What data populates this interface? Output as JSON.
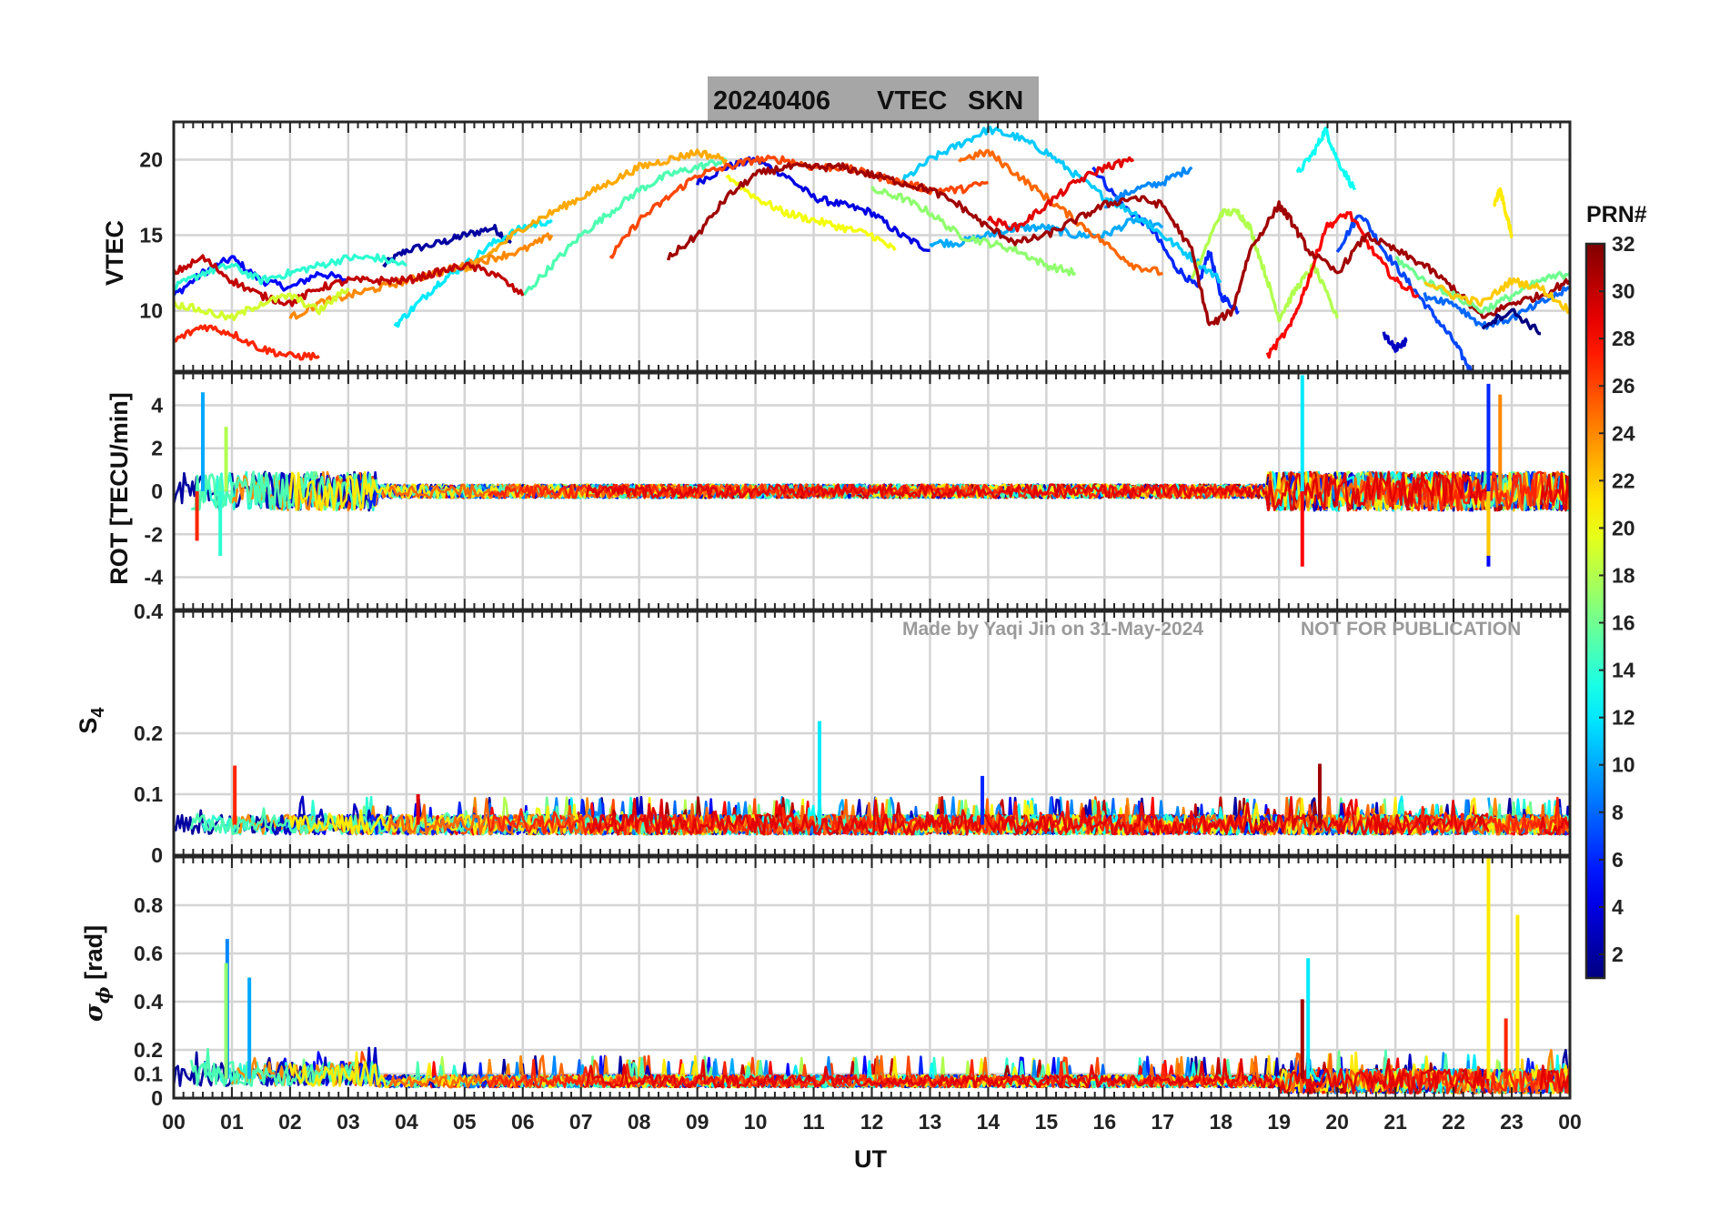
{
  "title": {
    "date": "20240406",
    "quantity": "VTEC",
    "station": "SKN"
  },
  "watermark": {
    "author": "Made by Yaqi Jin on 31-May-2024",
    "notice": "NOT FOR PUBLICATION"
  },
  "colorbar": {
    "label": "PRN#",
    "ticks": [
      "2",
      "4",
      "6",
      "8",
      "10",
      "12",
      "14",
      "16",
      "18",
      "20",
      "22",
      "24",
      "26",
      "28",
      "30",
      "32"
    ],
    "range": [
      1,
      32
    ],
    "colormap": "jet",
    "colors": [
      "#000080",
      "#0000ff",
      "#0080ff",
      "#00ffff",
      "#80ff80",
      "#ffff00",
      "#ff8000",
      "#ff0000",
      "#800000"
    ]
  },
  "chart_data": [
    {
      "type": "line",
      "panel": "vtec",
      "ylabel": "VTEC",
      "ylim": [
        6,
        22.5
      ],
      "yticks": [
        "10",
        "15",
        "20"
      ],
      "grid": true,
      "series_note": "",
      "series": [
        {
          "prn": 2,
          "x": [
            3.6,
            4.0,
            4.6,
            5.0,
            5.5,
            5.8
          ],
          "y": [
            13.0,
            14.0,
            14.5,
            15.0,
            15.5,
            14.5
          ]
        },
        {
          "prn": 5,
          "x": [
            0.0,
            0.5,
            1.0,
            1.5,
            2.0,
            2.5,
            3.0
          ],
          "y": [
            11.0,
            12.5,
            13.5,
            12.0,
            11.5,
            12.5,
            12.0
          ]
        },
        {
          "prn": 4,
          "x": [
            9.0,
            9.5,
            10.0,
            10.5,
            11.0,
            11.5,
            12.0,
            12.5,
            13.0
          ],
          "y": [
            18.5,
            19.5,
            20.0,
            19.0,
            17.5,
            17.0,
            16.5,
            15.0,
            14.0
          ]
        },
        {
          "prn": 6,
          "x": [
            15.8,
            16.3,
            16.8,
            17.2,
            17.6,
            17.8,
            18.0,
            18.3
          ],
          "y": [
            19.5,
            17.0,
            15.5,
            13.0,
            11.5,
            14.0,
            11.0,
            10.0
          ]
        },
        {
          "prn": 7,
          "x": [
            20.0,
            20.4,
            20.8,
            21.2,
            21.6,
            22.0,
            22.3
          ],
          "y": [
            14.0,
            16.5,
            14.0,
            12.0,
            10.0,
            8.0,
            6.0
          ]
        },
        {
          "prn": 9,
          "x": [
            16.0,
            16.5,
            17.0,
            17.5
          ],
          "y": [
            17.0,
            18.0,
            18.5,
            19.5
          ]
        },
        {
          "prn": 10,
          "x": [
            13.0,
            13.5,
            14.0,
            14.5,
            15.0,
            15.5,
            16.0,
            16.5,
            17.0
          ],
          "y": [
            14.5,
            14.5,
            15.0,
            15.5,
            15.5,
            15.0,
            15.0,
            16.0,
            15.5
          ]
        },
        {
          "prn": 11,
          "x": [
            12.5,
            13.0,
            13.5,
            14.0,
            14.5,
            15.0,
            15.5,
            16.0,
            16.5,
            17.0,
            17.5,
            18.0
          ],
          "y": [
            18.5,
            20.0,
            21.0,
            22.0,
            21.5,
            20.5,
            19.0,
            17.5,
            16.5,
            15.0,
            13.5,
            12.0
          ]
        },
        {
          "prn": 12,
          "x": [
            3.8,
            4.2,
            4.6,
            5.0,
            5.5,
            6.0,
            6.5
          ],
          "y": [
            9.0,
            10.5,
            12.0,
            13.0,
            14.5,
            15.5,
            16.0
          ]
        },
        {
          "prn": 13,
          "x": [
            19.3,
            19.6,
            19.8,
            20.0,
            20.3
          ],
          "y": [
            19.0,
            20.5,
            22.0,
            20.0,
            18.0
          ]
        },
        {
          "prn": 14,
          "x": [
            0.0,
            0.5,
            1.0,
            1.5,
            2.0,
            2.5,
            3.0,
            3.5,
            4.0
          ],
          "y": [
            11.5,
            12.5,
            13.0,
            12.0,
            12.5,
            13.0,
            13.5,
            13.5,
            13.0
          ]
        },
        {
          "prn": 15,
          "x": [
            6.0,
            6.5,
            7.0,
            7.5,
            8.0,
            8.5,
            9.0,
            9.5
          ],
          "y": [
            11.0,
            13.0,
            15.0,
            16.5,
            18.0,
            19.0,
            19.5,
            20.0
          ]
        },
        {
          "prn": 17,
          "x": [
            12.0,
            12.5,
            13.0,
            13.5,
            14.0,
            14.5,
            15.0,
            15.5
          ],
          "y": [
            18.0,
            17.5,
            16.5,
            15.0,
            14.5,
            14.0,
            13.0,
            12.5
          ]
        },
        {
          "prn": 18,
          "x": [
            17.5,
            18.0,
            18.3,
            18.5,
            18.8,
            19.0,
            19.3,
            19.6,
            20.0
          ],
          "y": [
            12.0,
            16.5,
            16.5,
            15.5,
            12.0,
            9.5,
            11.5,
            13.0,
            9.5
          ]
        },
        {
          "prn": 20,
          "x": [
            9.5,
            10.0,
            10.5,
            11.0,
            11.5,
            12.0,
            12.4
          ],
          "y": [
            19.0,
            17.5,
            16.5,
            16.0,
            15.5,
            15.0,
            14.0
          ]
        },
        {
          "prn": 21,
          "x": [
            22.7,
            22.8,
            22.9,
            23.0
          ],
          "y": [
            17.0,
            18.0,
            16.5,
            15.0
          ]
        },
        {
          "prn": 23,
          "x": [
            5.0,
            5.5,
            6.0,
            6.5,
            7.0,
            7.5,
            8.0,
            8.5,
            9.0,
            9.5
          ],
          "y": [
            12.5,
            14.0,
            15.5,
            16.5,
            17.5,
            18.5,
            19.5,
            20.0,
            20.5,
            20.0
          ]
        },
        {
          "prn": 24,
          "x": [
            2.0,
            2.5,
            3.0,
            3.5,
            4.0,
            4.5,
            5.0,
            5.5,
            6.0,
            6.5
          ],
          "y": [
            9.5,
            10.5,
            11.0,
            11.5,
            12.0,
            12.5,
            13.0,
            13.5,
            14.0,
            15.0
          ]
        },
        {
          "prn": 25,
          "x": [
            13.5,
            14.0,
            14.5,
            15.0,
            15.5,
            16.0,
            16.5,
            17.0
          ],
          "y": [
            20.0,
            20.5,
            19.0,
            17.5,
            16.0,
            14.5,
            13.0,
            12.5
          ]
        },
        {
          "prn": 26,
          "x": [
            7.5,
            8.0,
            8.5,
            9.0,
            9.5,
            10.0,
            10.5,
            11.0,
            11.5,
            12.0,
            12.5,
            13.0,
            13.5,
            14.0
          ],
          "y": [
            13.5,
            16.0,
            17.5,
            19.0,
            19.5,
            20.0,
            20.0,
            19.5,
            19.5,
            19.0,
            18.5,
            18.0,
            18.0,
            18.5
          ]
        },
        {
          "prn": 27,
          "x": [
            0.0,
            0.5,
            1.0,
            1.5,
            2.0,
            2.5
          ],
          "y": [
            8.0,
            9.0,
            8.5,
            7.5,
            7.0,
            7.0
          ]
        },
        {
          "prn": 28,
          "x": [
            18.8,
            19.2,
            19.5,
            19.8,
            20.2,
            20.6,
            21.0,
            21.4
          ],
          "y": [
            7.0,
            9.0,
            12.0,
            15.5,
            16.5,
            14.0,
            12.0,
            11.0
          ]
        },
        {
          "prn": 29,
          "x": [
            14.0,
            14.5,
            15.0,
            15.5,
            16.0,
            16.5
          ],
          "y": [
            16.0,
            15.5,
            17.0,
            18.5,
            19.5,
            20.0
          ]
        },
        {
          "prn": 30,
          "x": [
            0.0,
            0.5,
            1.0,
            1.5,
            2.0,
            2.5,
            3.0,
            3.5,
            4.0,
            4.5,
            5.0,
            5.5,
            6.0
          ],
          "y": [
            12.5,
            13.5,
            12.0,
            11.0,
            10.5,
            11.5,
            12.0,
            12.0,
            12.0,
            12.5,
            13.0,
            12.5,
            11.0
          ]
        },
        {
          "prn": 31,
          "x": [
            8.5,
            9.0,
            9.5,
            10.0,
            10.5,
            11.0,
            11.5,
            12.0,
            12.5,
            13.0,
            13.5,
            14.0,
            14.5,
            15.0,
            15.5,
            16.0,
            16.5,
            17.0,
            17.5,
            17.8,
            18.2,
            18.5,
            19.0,
            19.2,
            19.5,
            20.0,
            20.5,
            21.0,
            21.5,
            22.0,
            22.5,
            23.0,
            23.5,
            24.0
          ],
          "y": [
            13.5,
            15.0,
            17.5,
            19.0,
            19.5,
            19.5,
            19.5,
            19.0,
            18.5,
            18.0,
            17.0,
            15.5,
            14.5,
            15.0,
            16.0,
            17.0,
            17.5,
            17.0,
            14.0,
            9.0,
            10.0,
            14.0,
            17.0,
            16.0,
            14.0,
            12.5,
            15.0,
            14.0,
            13.0,
            11.5,
            9.5,
            10.5,
            11.0,
            12.0
          ]
        },
        {
          "prn": 8,
          "x": [
            21.5,
            22.0,
            22.5,
            23.0,
            23.5,
            24.0
          ],
          "y": [
            11.0,
            10.5,
            9.0,
            9.5,
            10.5,
            11.5
          ]
        },
        {
          "prn": 16,
          "x": [
            21.0,
            21.5,
            22.0,
            22.5,
            23.0,
            23.5,
            24.0
          ],
          "y": [
            13.5,
            12.0,
            11.0,
            10.0,
            11.0,
            12.0,
            12.5
          ]
        },
        {
          "prn": 22,
          "x": [
            21.5,
            22.0,
            22.5,
            23.0,
            23.5,
            24.0
          ],
          "y": [
            12.0,
            11.0,
            10.5,
            12.0,
            11.5,
            10.0
          ]
        },
        {
          "prn": 19,
          "x": [
            0.0,
            0.5,
            1.0,
            1.5,
            2.0,
            2.5,
            3.0
          ],
          "y": [
            10.5,
            10.0,
            9.5,
            10.5,
            11.0,
            10.0,
            11.5
          ]
        },
        {
          "prn": 3,
          "x": [
            20.8,
            21.0,
            21.2
          ],
          "y": [
            8.5,
            7.5,
            8.0
          ]
        },
        {
          "prn": 1,
          "x": [
            22.5,
            23.0,
            23.5
          ],
          "y": [
            9.0,
            10.0,
            8.5
          ]
        }
      ]
    },
    {
      "type": "line",
      "panel": "rot",
      "ylabel": "ROT [TECU/min]",
      "ylim": [
        -5.5,
        5.5
      ],
      "yticks": [
        "-4",
        "-2",
        "0",
        "2",
        "4"
      ],
      "grid": true,
      "spikes": [
        {
          "prn": 10,
          "x": 0.5,
          "y": 4.6
        },
        {
          "prn": 18,
          "x": 0.9,
          "y": 3.0
        },
        {
          "prn": 14,
          "x": 0.8,
          "y": -3.0
        },
        {
          "prn": 27,
          "x": 0.4,
          "y": -2.3
        },
        {
          "prn": 12,
          "x": 19.4,
          "y": 5.4
        },
        {
          "prn": 28,
          "x": 19.4,
          "y": -3.5
        },
        {
          "prn": 6,
          "x": 22.6,
          "y": 5.0
        },
        {
          "prn": 24,
          "x": 22.8,
          "y": 4.5
        },
        {
          "prn": 5,
          "x": 22.6,
          "y": -3.5
        },
        {
          "prn": 22,
          "x": 22.6,
          "y": -3.0
        }
      ]
    },
    {
      "type": "line",
      "panel": "s4",
      "ylabel": "S",
      "ylabel_sub": "4",
      "ylim": [
        0,
        0.4
      ],
      "yticks": [
        "0",
        "0.1",
        "0.2",
        "0.4"
      ],
      "grid": true,
      "spikes": [
        {
          "prn": 27,
          "x": 1.05,
          "y": 0.147
        },
        {
          "prn": 12,
          "x": 11.1,
          "y": 0.22
        },
        {
          "prn": 31,
          "x": 19.7,
          "y": 0.15
        },
        {
          "prn": 6,
          "x": 13.9,
          "y": 0.13
        },
        {
          "prn": 29,
          "x": 4.2,
          "y": 0.1
        }
      ]
    },
    {
      "type": "line",
      "panel": "sigma_phi",
      "ylabel": "σ",
      "ylabel_sub": "ϕ",
      "ylabel_unit": "[rad]",
      "ylim": [
        0,
        1.0
      ],
      "yticks": [
        "0",
        "0.1",
        "0.2",
        "0.4",
        "0.6",
        "0.8"
      ],
      "xlabel": "UT",
      "xticks": [
        "00",
        "01",
        "02",
        "03",
        "04",
        "05",
        "06",
        "07",
        "08",
        "09",
        "10",
        "11",
        "12",
        "13",
        "14",
        "15",
        "16",
        "17",
        "18",
        "19",
        "20",
        "21",
        "22",
        "23",
        "00"
      ],
      "xlim": [
        0,
        24
      ],
      "grid": true,
      "spikes": [
        {
          "prn": 9,
          "x": 0.92,
          "y": 0.66
        },
        {
          "prn": 17,
          "x": 0.9,
          "y": 0.56
        },
        {
          "prn": 10,
          "x": 1.3,
          "y": 0.5
        },
        {
          "prn": 12,
          "x": 19.5,
          "y": 0.58
        },
        {
          "prn": 31,
          "x": 19.4,
          "y": 0.41
        },
        {
          "prn": 21,
          "x": 22.6,
          "y": 1.0
        },
        {
          "prn": 21,
          "x": 23.1,
          "y": 0.76
        },
        {
          "prn": 27,
          "x": 22.9,
          "y": 0.33
        }
      ]
    }
  ]
}
